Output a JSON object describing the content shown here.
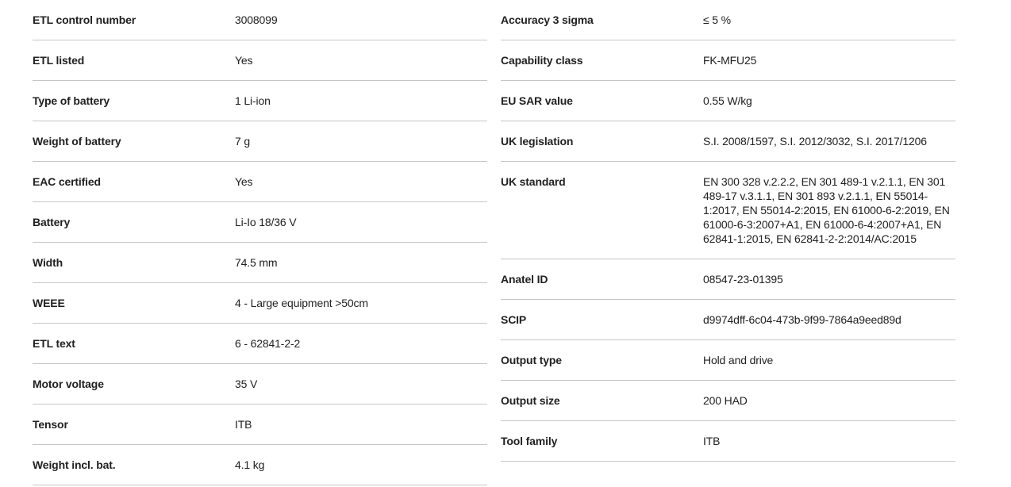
{
  "colors": {
    "background": "#ffffff",
    "divider": "#c6c6c6",
    "text": "#212121"
  },
  "tables": [
    {
      "name": "left",
      "rows": [
        {
          "label": "ETL control number",
          "value": "3008099"
        },
        {
          "label": "ETL listed",
          "value": "Yes"
        },
        {
          "label": "Type of battery",
          "value": "1 Li-ion"
        },
        {
          "label": "Weight of battery",
          "value": "7 g"
        },
        {
          "label": "EAC certified",
          "value": "Yes"
        },
        {
          "label": "Battery",
          "value": "Li-Io 18/36 V"
        },
        {
          "label": "Width",
          "value": "74.5 mm"
        },
        {
          "label": "WEEE",
          "value": "4 - Large equipment >50cm"
        },
        {
          "label": "ETL text",
          "value": "6 - 62841-2-2"
        },
        {
          "label": "Motor voltage",
          "value": "35 V"
        },
        {
          "label": "Tensor",
          "value": "ITB"
        },
        {
          "label": "Weight incl. bat.",
          "value": "4.1 kg"
        }
      ]
    },
    {
      "name": "right",
      "rows": [
        {
          "label": "Accuracy 3 sigma",
          "value": "≤ 5 %"
        },
        {
          "label": "Capability class",
          "value": "FK-MFU25"
        },
        {
          "label": "EU SAR value",
          "value": "0.55 W/kg"
        },
        {
          "label": "UK legislation",
          "value": "S.I. 2008/1597, S.I. 2012/3032, S.I. 2017/1206"
        },
        {
          "label": "UK standard",
          "value": "EN 300 328 v.2.2.2, EN 301 489-1 v.2.1.1, EN 301 489-17 v.3.1.1, EN 301 893 v.2.1.1, EN 55014-1:2017, EN 55014-2:2015, EN 61000-6-2:2019, EN 61000-6-3:2007+A1, EN 61000-6-4:2007+A1, EN 62841-1:2015, EN 62841-2-2:2014/AC:2015"
        },
        {
          "label": "Anatel ID",
          "value": "08547-23-01395"
        },
        {
          "label": "SCIP",
          "value": "d9974dff-6c04-473b-9f99-7864a9eed89d"
        },
        {
          "label": "Output type",
          "value": "Hold and drive"
        },
        {
          "label": "Output size",
          "value": "200 HAD"
        },
        {
          "label": "Tool family",
          "value": "ITB"
        }
      ]
    }
  ]
}
